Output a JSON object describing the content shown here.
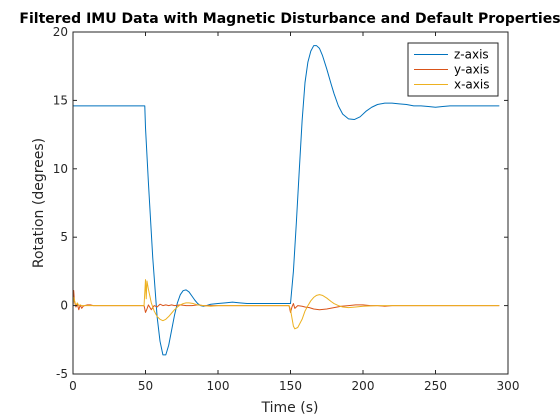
{
  "chart_data": {
    "type": "line",
    "title": "Filtered IMU Data with Magnetic Disturbance and Default Properties",
    "xlabel": "Time (s)",
    "ylabel": "Rotation (degrees)",
    "xlim": [
      0,
      300
    ],
    "ylim": [
      -5,
      20
    ],
    "xticks": [
      0,
      50,
      100,
      150,
      200,
      250,
      300
    ],
    "yticks": [
      -5,
      0,
      5,
      10,
      15,
      20
    ],
    "grid": false,
    "legend_position": "top-right",
    "series": [
      {
        "name": "z-axis",
        "color": "#0072BD",
        "x": [
          0,
          49.5,
          50,
          52,
          55,
          58,
          60,
          62,
          64,
          66,
          68,
          70,
          72,
          74,
          76,
          78,
          80,
          82,
          84,
          86,
          88,
          90,
          92,
          95,
          100,
          105,
          110,
          115,
          120,
          150,
          152,
          154,
          156,
          158,
          160,
          162,
          164,
          166,
          168,
          170,
          172,
          175,
          178,
          180,
          183,
          186,
          190,
          194,
          198,
          202,
          206,
          210,
          215,
          220,
          225,
          230,
          235,
          240,
          245,
          250,
          255,
          260,
          270,
          280,
          294
        ],
        "y": [
          14.6,
          14.6,
          13.0,
          9.0,
          3.5,
          -0.8,
          -2.6,
          -3.6,
          -3.6,
          -2.9,
          -1.8,
          -0.7,
          0.2,
          0.8,
          1.1,
          1.15,
          1.0,
          0.7,
          0.4,
          0.15,
          0.0,
          -0.05,
          0.0,
          0.1,
          0.15,
          0.2,
          0.25,
          0.2,
          0.15,
          0.15,
          2.5,
          6.0,
          9.8,
          13.5,
          16.3,
          17.8,
          18.6,
          19.0,
          19.0,
          18.8,
          18.3,
          17.3,
          16.2,
          15.5,
          14.6,
          14.0,
          13.65,
          13.6,
          13.8,
          14.2,
          14.5,
          14.7,
          14.8,
          14.8,
          14.75,
          14.7,
          14.6,
          14.6,
          14.55,
          14.5,
          14.55,
          14.6,
          14.6,
          14.6,
          14.6
        ]
      },
      {
        "name": "y-axis",
        "color": "#D95319",
        "x": [
          0,
          0.5,
          1,
          2,
          3,
          4,
          5,
          6,
          7,
          8,
          10,
          12,
          14,
          20,
          40,
          49,
          50,
          51,
          52,
          54,
          56,
          58,
          60,
          62,
          64,
          66,
          68,
          70,
          74,
          78,
          82,
          86,
          90,
          95,
          100,
          120,
          149,
          150,
          151,
          152,
          153,
          155,
          158,
          160,
          163,
          166,
          170,
          175,
          180,
          185,
          190,
          195,
          200,
          205,
          210,
          215,
          220,
          225,
          230,
          250,
          270,
          294
        ],
        "y": [
          0.0,
          1.1,
          0.3,
          -0.1,
          0.1,
          -0.3,
          0.05,
          -0.2,
          -0.05,
          0.0,
          0.05,
          0.05,
          0.0,
          0.0,
          0.0,
          0.0,
          -0.5,
          -0.25,
          0.05,
          -0.3,
          0.0,
          -0.1,
          0.1,
          0.0,
          0.05,
          0.0,
          0.05,
          0.0,
          0.05,
          0.0,
          0.0,
          0.05,
          0.0,
          0.0,
          0.0,
          0.0,
          0.0,
          -0.5,
          -0.1,
          0.15,
          -0.2,
          0.0,
          -0.05,
          -0.1,
          -0.15,
          -0.25,
          -0.3,
          -0.25,
          -0.15,
          -0.05,
          0.0,
          0.05,
          0.05,
          0.0,
          0.0,
          -0.05,
          0.0,
          0.0,
          0.0,
          0.0,
          0.0,
          0.0
        ]
      },
      {
        "name": "x-axis",
        "color": "#EDB120",
        "x": [
          0,
          0.5,
          1,
          2,
          3,
          4,
          5,
          6,
          8,
          10,
          20,
          40,
          49,
          50,
          50.5,
          51,
          52,
          54,
          56,
          58,
          60,
          62,
          64,
          66,
          68,
          70,
          72,
          74,
          76,
          78,
          80,
          83,
          86,
          90,
          95,
          100,
          110,
          149,
          150,
          151,
          152,
          153,
          155,
          158,
          160,
          162,
          164,
          166,
          168,
          170,
          172,
          175,
          178,
          180,
          183,
          186,
          190,
          195,
          200,
          210,
          230,
          260,
          294
        ],
        "y": [
          0.0,
          0.6,
          0.4,
          0.0,
          0.2,
          0.0,
          0.05,
          0.0,
          0.0,
          0.0,
          0.0,
          0.0,
          0.0,
          1.9,
          0.5,
          1.8,
          1.2,
          0.2,
          -0.4,
          -0.8,
          -1.0,
          -1.1,
          -1.0,
          -0.8,
          -0.55,
          -0.3,
          -0.1,
          0.05,
          0.15,
          0.2,
          0.2,
          0.15,
          0.05,
          0.0,
          -0.05,
          0.0,
          0.0,
          0.0,
          -0.3,
          -0.9,
          -1.5,
          -1.7,
          -1.6,
          -1.0,
          -0.4,
          0.0,
          0.35,
          0.6,
          0.75,
          0.8,
          0.75,
          0.55,
          0.3,
          0.15,
          0.0,
          -0.1,
          -0.15,
          -0.1,
          -0.05,
          0.0,
          0.0,
          0.0,
          0.0
        ]
      }
    ]
  }
}
